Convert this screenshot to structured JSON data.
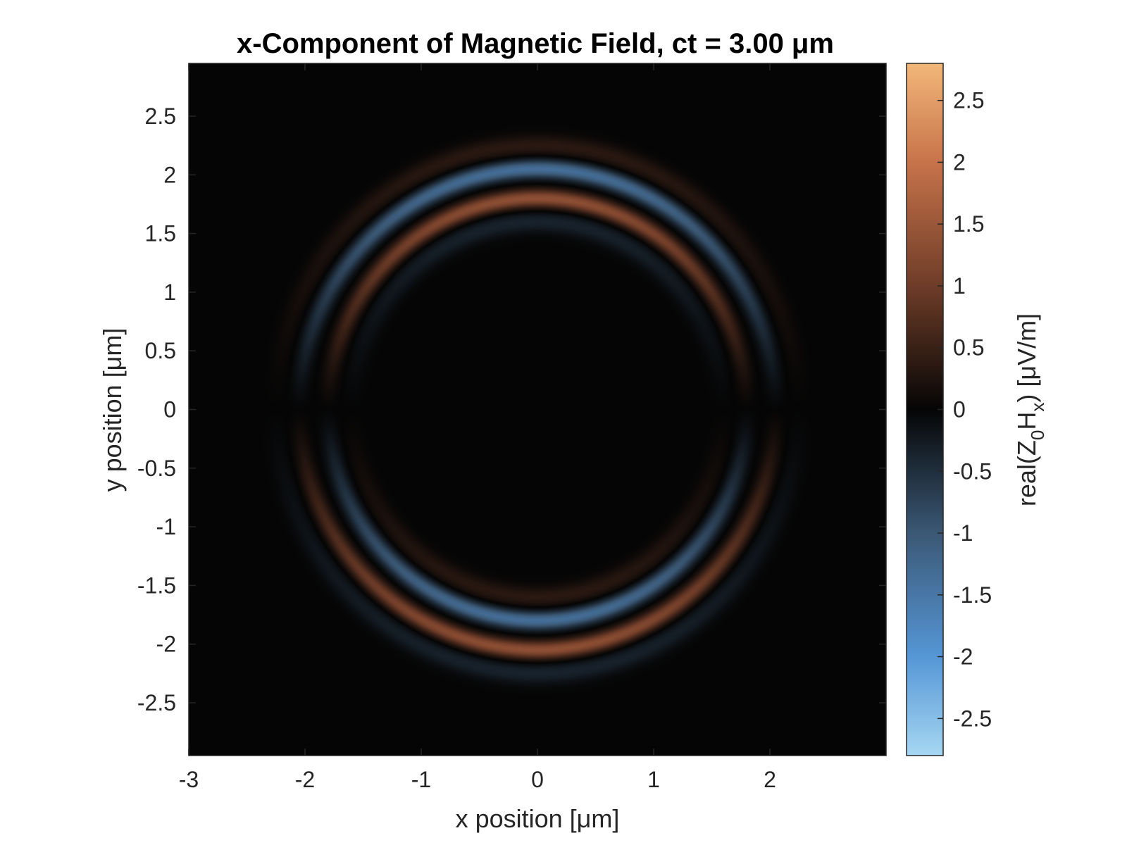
{
  "chart_data": {
    "type": "heatmap",
    "title": "x-Component of Magnetic Field, ct = 3.00 μm",
    "xlabel": "x position [μm]",
    "ylabel": "y position [μm]",
    "xlim": [
      -3,
      3
    ],
    "ylim": [
      -2.95,
      2.95
    ],
    "x_ticks": [
      "-3",
      "-2",
      "-1",
      "0",
      "1",
      "2"
    ],
    "x_tick_values": [
      -3,
      -2,
      -1,
      0,
      1,
      2
    ],
    "y_ticks": [
      "-2.5",
      "-2",
      "-1.5",
      "-1",
      "-0.5",
      "0",
      "0.5",
      "1",
      "1.5",
      "2",
      "2.5"
    ],
    "y_tick_values": [
      -2.5,
      -2,
      -1.5,
      -1,
      -0.5,
      0,
      0.5,
      1,
      1.5,
      2,
      2.5
    ],
    "colorbar": {
      "label_parts": [
        "real(Z",
        "0",
        "H",
        "x",
        ") [μV/m]"
      ],
      "clim": [
        -2.8,
        2.8
      ],
      "ticks": [
        "-2.5",
        "-2",
        "-1.5",
        "-1",
        "-0.5",
        "0",
        "0.5",
        "1",
        "1.5",
        "2",
        "2.5"
      ],
      "tick_values": [
        -2.5,
        -2,
        -1.5,
        -1,
        -0.5,
        0,
        0.5,
        1,
        1.5,
        2,
        2.5
      ],
      "colormap_stops": [
        {
          "value": -2.8,
          "color": "#a6d7f2"
        },
        {
          "value": -2.0,
          "color": "#5596d6"
        },
        {
          "value": -1.0,
          "color": "#3b5875"
        },
        {
          "value": 0.0,
          "color": "#050505"
        },
        {
          "value": 1.0,
          "color": "#6e3c28"
        },
        {
          "value": 2.0,
          "color": "#c7734a"
        },
        {
          "value": 2.8,
          "color": "#f2b779"
        }
      ]
    },
    "field": {
      "description_center": [
        0.0,
        0.0
      ],
      "rings": [
        {
          "radius": 2.25,
          "width": 0.09,
          "peak": 0.35
        },
        {
          "radius": 2.05,
          "width": 0.075,
          "peak": -1.35
        },
        {
          "radius": 1.8,
          "width": 0.075,
          "peak": 1.35
        },
        {
          "radius": 1.6,
          "width": 0.09,
          "peak": -0.35
        }
      ],
      "angular_pattern": "cos(theta)"
    },
    "grid": false,
    "legend": "none"
  }
}
